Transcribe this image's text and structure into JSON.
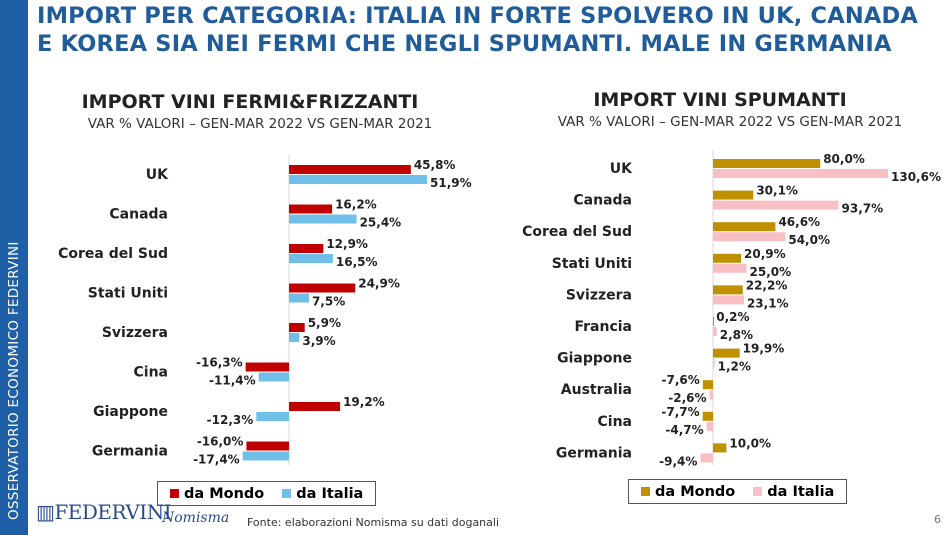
{
  "sidebar_text": "OSSERVATORIO ECONOMICO  FEDERVINI",
  "title": "IMPORT PER CATEGORIA: ITALIA IN FORTE SPOLVERO IN UK, CANADA E KOREA SIA NEI FERMI CHE NEGLI SPUMANTI. MALE IN GERMANIA",
  "footer": {
    "source": "Fonte: elaborazioni Nomisma su dati doganali",
    "page": "6",
    "logo1": "FEDERVINI",
    "logo2": "Nomisma"
  },
  "chart_data": [
    {
      "type": "bar",
      "orientation": "horizontal",
      "title": "IMPORT VINI FERMI&FRIZZANTI",
      "subtitle": "VAR % VALORI – GEN-MAR 2022 VS GEN-MAR 2021",
      "categories": [
        "UK",
        "Canada",
        "Corea del Sud",
        "Stati Uniti",
        "Svizzera",
        "Cina",
        "Giappone",
        "Germania"
      ],
      "series": [
        {
          "name": "da Mondo",
          "color": "#c00000",
          "values": [
            45.8,
            16.2,
            12.9,
            24.9,
            5.9,
            -16.3,
            19.2,
            -16.0
          ],
          "labels": [
            "45,8%",
            "16,2%",
            "12,9%",
            "24,9%",
            "5,9%",
            "-16,3%",
            "19,2%",
            "-16,0%"
          ]
        },
        {
          "name": "da Italia",
          "color": "#6fbfe8",
          "values": [
            51.9,
            25.4,
            16.5,
            7.5,
            3.9,
            -11.4,
            -12.3,
            -17.4
          ],
          "labels": [
            "51,9%",
            "25,4%",
            "16,5%",
            "7,5%",
            "3,9%",
            "-11,4%",
            "-12,3%",
            "-17,4%"
          ]
        }
      ],
      "legend": "bottom"
    },
    {
      "type": "bar",
      "orientation": "horizontal",
      "title": "IMPORT VINI SPUMANTI",
      "subtitle": "VAR % VALORI – GEN-MAR 2022 VS GEN-MAR 2021",
      "categories": [
        "UK",
        "Canada",
        "Corea del Sud",
        "Stati Uniti",
        "Svizzera",
        "Francia",
        "Giappone",
        "Australia",
        "Cina",
        "Germania"
      ],
      "series": [
        {
          "name": "da Mondo",
          "color": "#bf9000",
          "values": [
            80.0,
            30.1,
            46.6,
            20.9,
            22.2,
            0.2,
            19.9,
            -7.6,
            -7.7,
            10.0
          ],
          "labels": [
            "80,0%",
            "30,1%",
            "46,6%",
            "20,9%",
            "22,2%",
            "0,2%",
            "19,9%",
            "-7,6%",
            "-7,7%",
            "10,0%"
          ]
        },
        {
          "name": "da Italia",
          "color": "#f8c0c4",
          "values": [
            130.6,
            93.7,
            54.0,
            25.0,
            23.1,
            2.8,
            1.2,
            -2.6,
            -4.7,
            -9.4
          ],
          "labels": [
            "130,6%",
            "93,7%",
            "54,0%",
            "25,0%",
            "23,1%",
            "2,8%",
            "1,2%",
            "-2,6%",
            "-4,7%",
            "-9,4%"
          ]
        }
      ],
      "legend": "bottom"
    }
  ]
}
